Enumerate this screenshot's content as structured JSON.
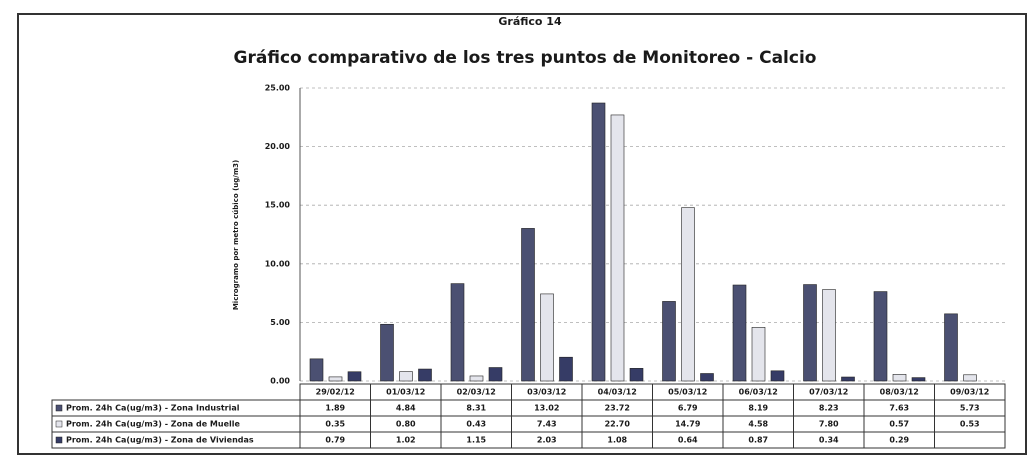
{
  "chart_data": {
    "type": "bar",
    "header": "Gráfico 14",
    "title": "Gráfico comparativo de los tres puntos de Monitoreo - Calcio",
    "ylabel": "Microgramo por metro cúbico (ug/m3)",
    "categories": [
      "29/02/12",
      "01/03/12",
      "02/03/12",
      "03/03/12",
      "04/03/12",
      "05/03/12",
      "06/03/12",
      "07/03/12",
      "08/03/12",
      "09/03/12"
    ],
    "series": [
      {
        "name": "Prom. 24h Ca(ug/m3) - Zona Industrial",
        "color": "#4b5072",
        "values": [
          1.89,
          4.84,
          8.31,
          13.02,
          23.72,
          6.79,
          8.19,
          8.23,
          7.63,
          5.73
        ],
        "value_labels": [
          "1.89",
          "4.84",
          "8.31",
          "13.02",
          "23.72",
          "6.79",
          "8.19",
          "8.23",
          "7.63",
          "5.73"
        ]
      },
      {
        "name": "Prom. 24h Ca(ug/m3) - Zona de Muelle",
        "color": "#e4e5ec",
        "values": [
          0.35,
          0.8,
          0.43,
          7.43,
          22.7,
          14.79,
          4.58,
          7.8,
          0.57,
          0.53
        ],
        "value_labels": [
          "0.35",
          "0.80",
          "0.43",
          "7.43",
          "22.70",
          "14.79",
          "4.58",
          "7.80",
          "0.57",
          "0.53"
        ]
      },
      {
        "name": "Prom. 24h Ca(ug/m3) - Zona de Viviendas",
        "color": "#363c66",
        "values": [
          0.79,
          1.02,
          1.15,
          2.03,
          1.08,
          0.64,
          0.87,
          0.34,
          0.29,
          null
        ],
        "value_labels": [
          "0.79",
          "1.02",
          "1.15",
          "2.03",
          "1.08",
          "0.64",
          "0.87",
          "0.34",
          "0.29",
          null
        ]
      }
    ],
    "ylim": [
      0,
      25
    ],
    "yticks": [
      {
        "value": 0,
        "label": "0.00"
      },
      {
        "value": 5,
        "label": "5.00"
      },
      {
        "value": 10,
        "label": "10.00"
      },
      {
        "value": 15,
        "label": "15.00"
      },
      {
        "value": 20,
        "label": "20.00"
      },
      {
        "value": 25,
        "label": "25.00"
      }
    ],
    "grid": true
  }
}
